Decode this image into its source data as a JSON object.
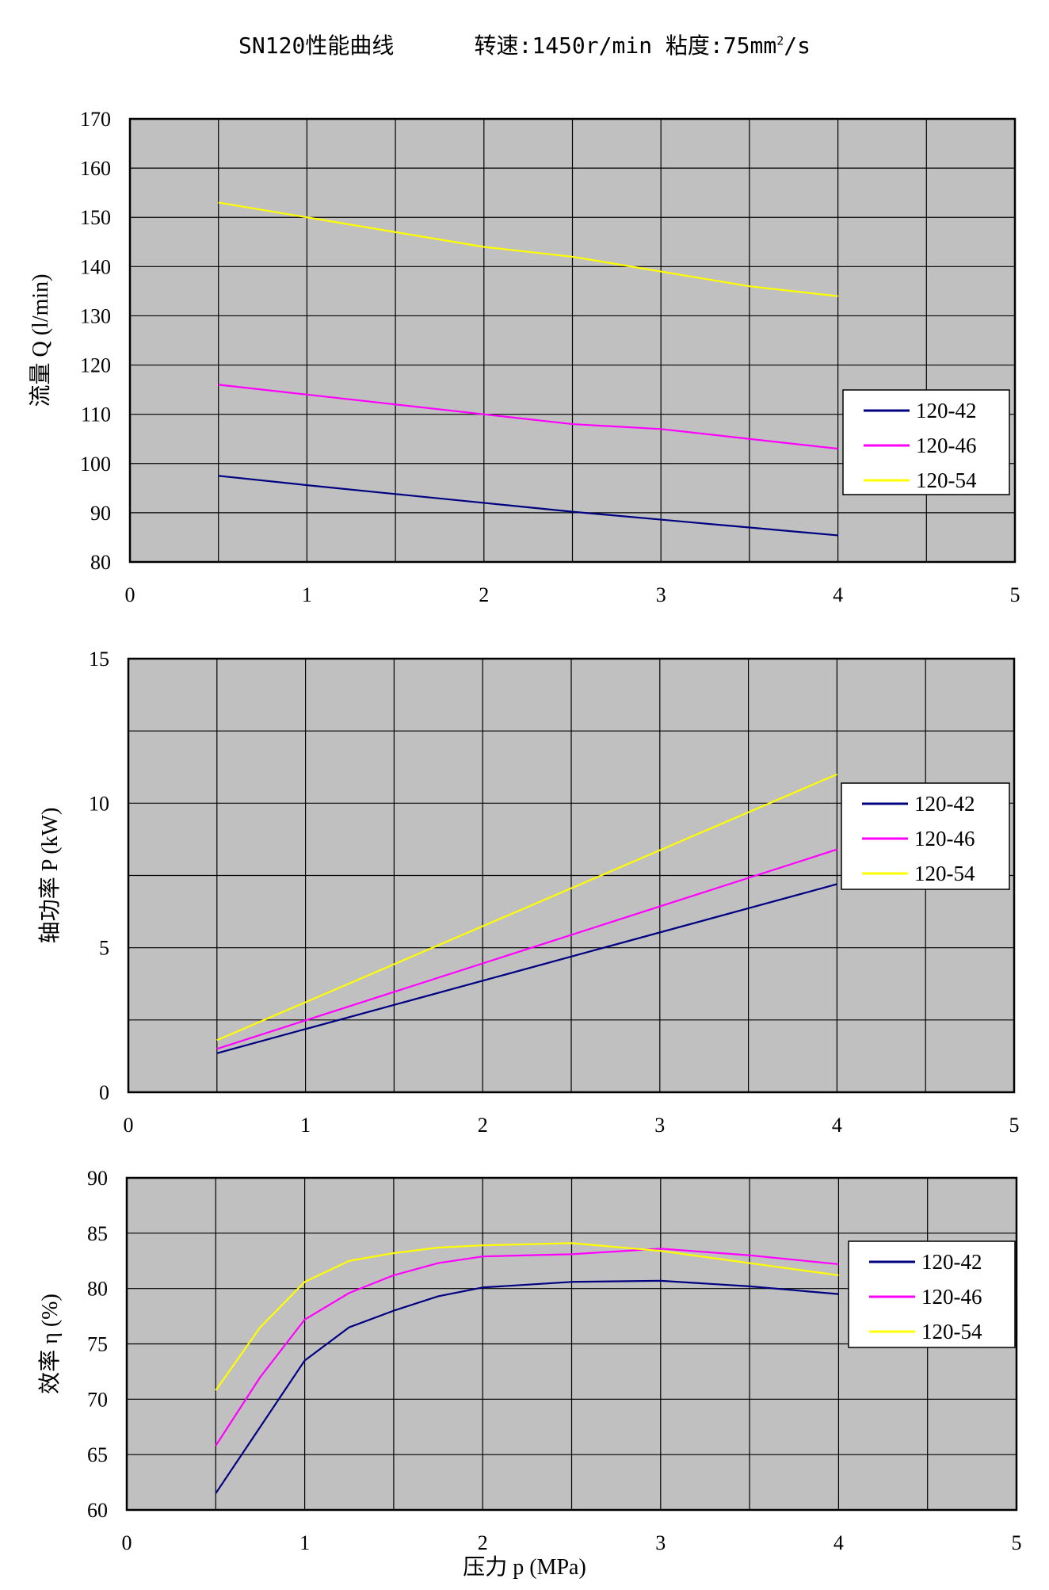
{
  "title": {
    "model": "SN120性能曲线",
    "speed": "转速:1450r/min",
    "viscosity_prefix": "粘度:75mm",
    "viscosity_sup": "2",
    "viscosity_suffix": "/s"
  },
  "x_axis_label": "压力 p (MPa)",
  "colors": {
    "120-42": "#000080",
    "120-46": "#ff00ff",
    "120-54": "#ffff00",
    "plot_bg": "#c0c0c0",
    "grid": "#000000"
  },
  "chart_data": [
    {
      "type": "line",
      "name": "flow",
      "ylabel": "流量 Q (l/min)",
      "xlabel": "",
      "xlim": [
        0,
        5
      ],
      "ylim": [
        80,
        170
      ],
      "x_ticks": [
        0,
        1,
        2,
        3,
        4,
        5
      ],
      "y_ticks": [
        80,
        90,
        100,
        110,
        120,
        130,
        140,
        150,
        160,
        170
      ],
      "legend_position": "right-middle",
      "series": [
        {
          "name": "120-42",
          "x": [
            0.5,
            1,
            1.5,
            2,
            2.5,
            3,
            3.5,
            4
          ],
          "values": [
            97.5,
            95.6,
            93.8,
            92.0,
            90.2,
            88.6,
            87.0,
            85.4
          ]
        },
        {
          "name": "120-46",
          "x": [
            0.5,
            1,
            1.5,
            2,
            2.5,
            3,
            3.5,
            4
          ],
          "values": [
            116,
            114,
            112,
            110,
            108,
            107,
            105,
            103
          ]
        },
        {
          "name": "120-54",
          "x": [
            0.5,
            1,
            1.5,
            2,
            2.5,
            3,
            3.5,
            4
          ],
          "values": [
            153,
            150,
            147,
            144,
            142,
            139,
            136,
            134
          ]
        }
      ]
    },
    {
      "type": "line",
      "name": "power",
      "ylabel": "轴功率 P (kW)",
      "xlabel": "",
      "xlim": [
        0,
        5
      ],
      "ylim": [
        0,
        15
      ],
      "x_ticks": [
        0,
        1,
        2,
        3,
        4,
        5
      ],
      "y_ticks": [
        0,
        5,
        10,
        15
      ],
      "y_gridlines": [
        0,
        2.5,
        5,
        7.5,
        10,
        12.5,
        15
      ],
      "legend_position": "right-middle",
      "series": [
        {
          "name": "120-42",
          "x": [
            0.5,
            4
          ],
          "values": [
            1.35,
            7.2
          ]
        },
        {
          "name": "120-46",
          "x": [
            0.5,
            4
          ],
          "values": [
            1.5,
            8.4
          ]
        },
        {
          "name": "120-54",
          "x": [
            0.5,
            4
          ],
          "values": [
            1.8,
            11.0
          ]
        }
      ]
    },
    {
      "type": "line",
      "name": "efficiency",
      "ylabel": "效率 η (%)",
      "xlabel": "压力 p (MPa)",
      "xlim": [
        0,
        5
      ],
      "ylim": [
        60,
        90
      ],
      "x_ticks": [
        0,
        1,
        2,
        3,
        4,
        5
      ],
      "y_ticks": [
        60,
        65,
        70,
        75,
        80,
        85,
        90
      ],
      "legend_position": "right-middle",
      "series": [
        {
          "name": "120-42",
          "x": [
            0.5,
            0.75,
            1,
            1.25,
            1.5,
            1.75,
            2,
            2.5,
            3,
            3.5,
            4
          ],
          "values": [
            61.5,
            67.5,
            73.5,
            76.5,
            78.0,
            79.3,
            80.1,
            80.6,
            80.7,
            80.2,
            79.5
          ]
        },
        {
          "name": "120-46",
          "x": [
            0.5,
            0.75,
            1,
            1.25,
            1.5,
            1.75,
            2,
            2.5,
            3,
            3.5,
            4
          ],
          "values": [
            65.8,
            72.0,
            77.2,
            79.6,
            81.2,
            82.3,
            82.9,
            83.1,
            83.6,
            83.0,
            82.2
          ]
        },
        {
          "name": "120-54",
          "x": [
            0.5,
            0.75,
            1,
            1.25,
            1.5,
            1.75,
            2,
            2.5,
            3,
            3.5,
            4
          ],
          "values": [
            70.8,
            76.5,
            80.6,
            82.5,
            83.2,
            83.7,
            83.9,
            84.1,
            83.4,
            82.3,
            81.2
          ]
        }
      ]
    }
  ]
}
